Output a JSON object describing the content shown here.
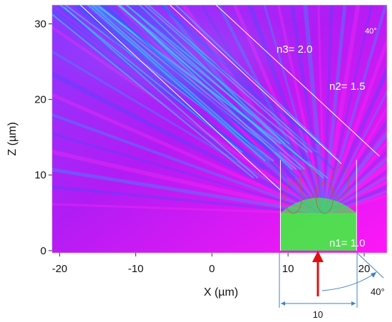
{
  "chart_data": {
    "type": "heatmap",
    "xlabel": "X (µm)",
    "ylabel": "Z (µm)",
    "xlim": [
      -21,
      23
    ],
    "ylim": [
      -0.3,
      32.5
    ],
    "x_ticks": [
      -20,
      -10,
      0,
      10,
      20
    ],
    "y_ticks": [
      0,
      10,
      20,
      30
    ],
    "structure": {
      "left_x": 9,
      "right_x": 19,
      "top_z": 12,
      "slope_deg": 40
    },
    "annotations": {
      "n1": "n1= 1.0",
      "n2": "n2= 1.5",
      "n3": "n3= 2.0",
      "angle_top": "40°",
      "angle_bottom": "40°",
      "width": "10"
    },
    "colors": {
      "field_low": "#ff10ff",
      "field_mid": "#7a2cff",
      "field_high": "#27d6ff",
      "green": "#36ff34",
      "arrow": "#e01010",
      "dimension": "#3f82c4"
    }
  }
}
